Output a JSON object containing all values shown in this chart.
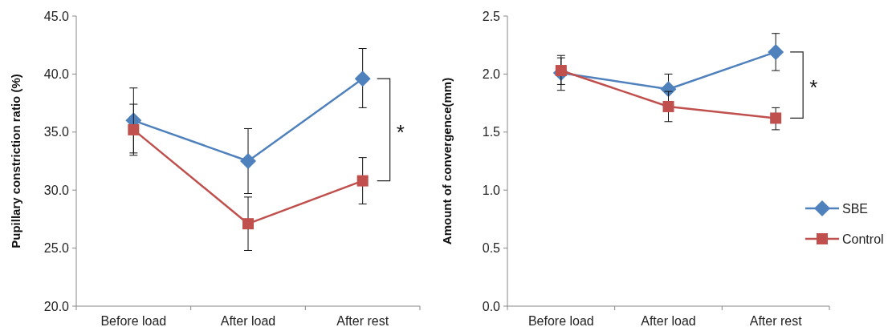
{
  "chart_data": [
    {
      "type": "line",
      "ylabel": "Pupillary constriction ratio (%)",
      "categories": [
        "Before load",
        "After load",
        "After rest"
      ],
      "ylim": [
        20,
        45
      ],
      "yticks": [
        {
          "value": 20,
          "label": "20.0"
        },
        {
          "value": 25,
          "label": "25.0"
        },
        {
          "value": 30,
          "label": "30.0"
        },
        {
          "value": 35,
          "label": "35.0"
        },
        {
          "value": 40,
          "label": "40.0"
        },
        {
          "value": 45,
          "label": "45.0"
        }
      ],
      "annotations": [
        "*"
      ],
      "legend": false,
      "series": [
        {
          "color": "#4f81bd",
          "marker": "diamond",
          "values": [
            36.0,
            32.5,
            39.6
          ],
          "errors": [
            [
              33.2,
              38.8
            ],
            [
              29.7,
              35.3
            ],
            [
              37.1,
              42.2
            ]
          ]
        },
        {
          "color": "#c0504d",
          "marker": "square",
          "values": [
            35.2,
            27.1,
            30.8
          ],
          "errors": [
            [
              33.0,
              37.4
            ],
            [
              24.8,
              29.4
            ],
            [
              28.8,
              32.8
            ]
          ]
        }
      ]
    },
    {
      "type": "line",
      "ylabel": "Amount of convergence(mm)",
      "categories": [
        "Before load",
        "After load",
        "After rest"
      ],
      "ylim": [
        0,
        2.5
      ],
      "yticks": [
        {
          "value": 0,
          "label": "0.0"
        },
        {
          "value": 0.5,
          "label": "0.5"
        },
        {
          "value": 1,
          "label": "1.0"
        },
        {
          "value": 1.5,
          "label": "1.5"
        },
        {
          "value": 2,
          "label": "2.0"
        },
        {
          "value": 2.5,
          "label": "2.5"
        }
      ],
      "annotations": [
        "*"
      ],
      "legend": "right",
      "series": [
        {
          "name": "SBE",
          "color": "#4f81bd",
          "marker": "diamond",
          "values": [
            2.01,
            1.87,
            2.19
          ],
          "errors": [
            [
              1.86,
              2.16
            ],
            [
              1.87,
              2.0
            ],
            [
              2.03,
              2.35
            ]
          ]
        },
        {
          "name": "Control",
          "color": "#c0504d",
          "marker": "square",
          "values": [
            2.03,
            1.72,
            1.62
          ],
          "errors": [
            [
              1.91,
              2.14
            ],
            [
              1.59,
              1.85
            ],
            [
              1.52,
              1.71
            ]
          ]
        }
      ]
    }
  ]
}
